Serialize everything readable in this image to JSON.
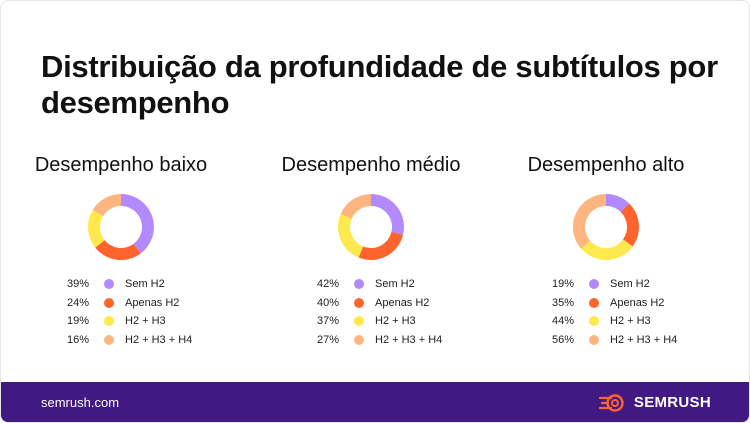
{
  "title": "Distribuição da profundidade de subtítulos por desempenho",
  "colors": {
    "sem_h2": "#B389FF",
    "apenas_h2": "#FF642D",
    "h2_h3": "#FFE94D",
    "h2_h3_h4": "#FFB580",
    "footer_bg": "#421983"
  },
  "chart_data": [
    {
      "type": "pie",
      "title": "Desempenho baixo",
      "categories": [
        "Sem H2",
        "Apenas H2",
        "H2 + H3",
        "H2 + H3 + H4"
      ],
      "values": [
        39,
        24,
        19,
        16
      ],
      "labels": [
        "39%",
        "24%",
        "19%",
        "16%"
      ],
      "donut": true
    },
    {
      "type": "pie",
      "title": "Desempenho médio",
      "categories": [
        "Sem H2",
        "Apenas H2",
        "H2 + H3",
        "H2 + H3 + H4"
      ],
      "values": [
        42,
        40,
        37,
        27
      ],
      "labels": [
        "42%",
        "40%",
        "37%",
        "27%"
      ],
      "donut": true
    },
    {
      "type": "pie",
      "title": "Desempenho alto",
      "categories": [
        "Sem H2",
        "Apenas H2",
        "H2 + H3",
        "H2 + H3 + H4"
      ],
      "values": [
        19,
        35,
        44,
        56
      ],
      "labels": [
        "19%",
        "35%",
        "44%",
        "56%"
      ],
      "donut": true
    }
  ],
  "footer": {
    "url": "semrush.com",
    "brand": "SEMRUSH",
    "brand_icon": "semrush-fire-icon"
  }
}
